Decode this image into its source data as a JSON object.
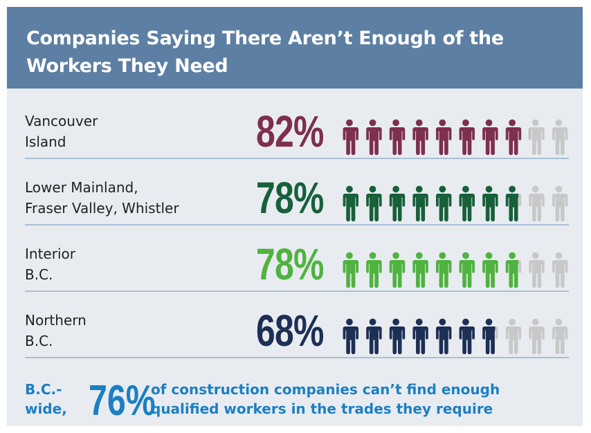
{
  "header": {
    "title": "Companies Saying There Aren’t Enough of the Workers They Need"
  },
  "chart_data": {
    "type": "pictograph",
    "title": "Companies Saying There Aren’t Enough of the Workers They Need",
    "unit": "%",
    "icons_per_row": 10,
    "rows": [
      {
        "label": "Vancouver Island",
        "label_lines": [
          "Vancouver",
          "Island"
        ],
        "value": 82,
        "display": "82%",
        "color": "#7e2f4e"
      },
      {
        "label": "Lower Mainland, Fraser Valley, Whistler",
        "label_lines": [
          "Lower Mainland,",
          "Fraser Valley, Whistler"
        ],
        "value": 78,
        "display": "78%",
        "color": "#17603a"
      },
      {
        "label": "Interior B.C.",
        "label_lines": [
          "Interior",
          "B.C."
        ],
        "value": 78,
        "display": "78%",
        "color": "#4fb33f"
      },
      {
        "label": "Northern B.C.",
        "label_lines": [
          "Northern",
          "B.C."
        ],
        "value": 68,
        "display": "68%",
        "color": "#1d2f55"
      }
    ],
    "empty_icon_color": "#c8c8c8"
  },
  "footer": {
    "prefix_line1": "B.C.-",
    "prefix_line2": "wide,",
    "value": "76%",
    "text_line1": "of construction companies can’t find enough",
    "text_line2": "qualified workers in the trades they require"
  }
}
